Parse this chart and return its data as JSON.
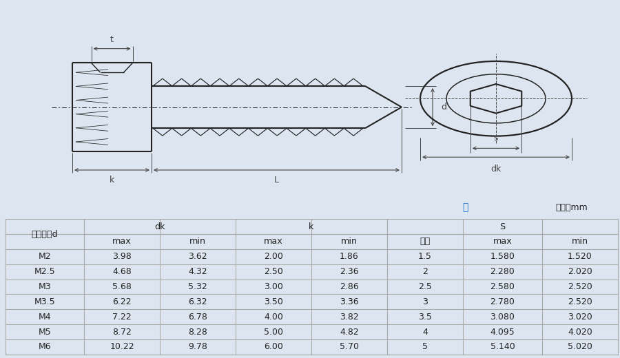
{
  "unit_label": "单位：mm",
  "stock_label": "存",
  "table_data": [
    [
      "M2",
      "3.98",
      "3.62",
      "2.00",
      "1.86",
      "1.5",
      "1.580",
      "1.520"
    ],
    [
      "M2.5",
      "4.68",
      "4.32",
      "2.50",
      "2.36",
      "2",
      "2.280",
      "2.020"
    ],
    [
      "M3",
      "5.68",
      "5.32",
      "3.00",
      "2.86",
      "2.5",
      "2.580",
      "2.520"
    ],
    [
      "M3.5",
      "6.22",
      "6.32",
      "3.50",
      "3.36",
      "3",
      "2.780",
      "2.520"
    ],
    [
      "M4",
      "7.22",
      "6.78",
      "4.00",
      "3.82",
      "3.5",
      "3.080",
      "3.020"
    ],
    [
      "M5",
      "8.72",
      "8.28",
      "5.00",
      "4.82",
      "4",
      "4.095",
      "4.020"
    ],
    [
      "M6",
      "10.22",
      "9.78",
      "6.00",
      "5.70",
      "5",
      "5.140",
      "5.020"
    ]
  ],
  "drawing_bg": "#dde6f0",
  "table_bg": "#ffffff",
  "line_color": "#222222",
  "blue_color": "#1a6fcc",
  "dim_color": "#444444"
}
